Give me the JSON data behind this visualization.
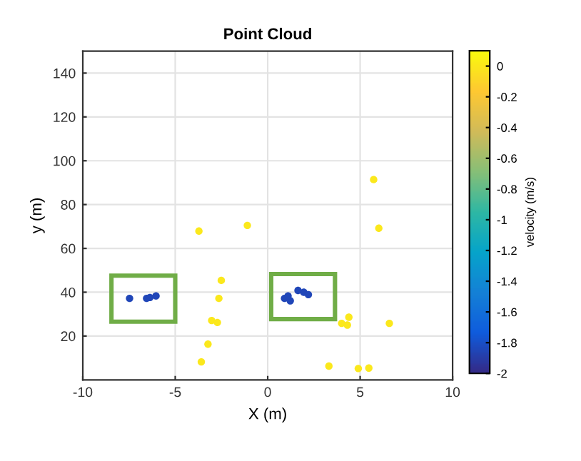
{
  "chart_data": {
    "type": "scatter",
    "title": "Point Cloud",
    "xlabel": "X (m)",
    "ylabel": "y (m)",
    "clabel": "velocity (m/s)",
    "x": [
      -7.47,
      -6.55,
      -6.37,
      -6.04,
      0.91,
      1.22,
      1.64,
      1.95,
      2.2,
      1.1,
      -3.72,
      -1.1,
      -2.51,
      -2.64,
      -3.03,
      -2.72,
      -3.23,
      -3.59,
      5.73,
      6.01,
      4.39,
      4.0,
      4.31,
      6.58,
      3.31,
      4.9,
      5.47
    ],
    "values": [
      37.2,
      37.2,
      37.6,
      38.3,
      37.2,
      36.1,
      40.8,
      40.0,
      38.9,
      38.3,
      67.9,
      70.5,
      45.4,
      37.2,
      27.1,
      26.2,
      16.3,
      8.2,
      91.4,
      69.2,
      28.6,
      25.8,
      25.0,
      25.8,
      6.3,
      5.2,
      5.4
    ],
    "cvalues": [
      -1.85,
      -1.85,
      -1.85,
      -1.85,
      -1.85,
      -1.85,
      -1.85,
      -1.85,
      -1.85,
      -1.85,
      0,
      0,
      0,
      0,
      0,
      0,
      0,
      0,
      0,
      0,
      0,
      0,
      0,
      0,
      0,
      0,
      0
    ],
    "clim": [
      -2,
      0.1
    ],
    "cticks": [
      0,
      -0.2,
      -0.4,
      -0.6,
      -0.8,
      -1,
      -1.2,
      -1.4,
      -1.6,
      -1.8,
      -2
    ],
    "xlim": [
      -10,
      10
    ],
    "xticks": [
      -10,
      -5,
      0,
      5,
      10
    ],
    "ylim": [
      0,
      150
    ],
    "yticks": [
      20,
      40,
      60,
      80,
      100,
      120,
      140
    ],
    "grid": true,
    "marker": "circle"
  }
}
